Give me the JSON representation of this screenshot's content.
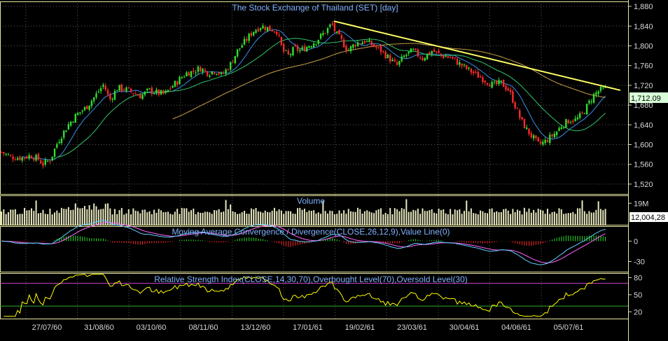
{
  "colors": {
    "background": "#000000",
    "grid": "#5a5a5a",
    "axis_text": "#d8d8d8",
    "title_text": "#7fb2ff",
    "frame": "#e6e6a0",
    "candle_up": "#2fe02f",
    "candle_down": "#ff2a2a",
    "ma_short": "#3a8fe8",
    "ma_medium": "#2ec46a",
    "ma_long": "#c9a04a",
    "trendline": "#ffff66",
    "volume_bar": "#e8e8c0",
    "macd_line": "#5fd0ff",
    "macd_signal": "#ff66ff",
    "rsi_line": "#ffff00",
    "overbought_line": "#cc44cc",
    "oversold_line": "#33aa33",
    "price_label_bg": "#d8ffd8",
    "volume_label_bg": "#ffffff"
  },
  "chart_data": [
    {
      "type": "candlestick",
      "title": "The Stock Exchange of Thailand (SET) [day]",
      "ylim": [
        1500,
        1890
      ],
      "yticks": [
        1520,
        1560,
        1600,
        1640,
        1680,
        1720,
        1760,
        1800,
        1840,
        1880
      ],
      "ytick_labels": [
        "1,520",
        "1,560",
        "1,600",
        "1,640",
        "1,680",
        "1,720",
        "1,760",
        "1,800",
        "1,840",
        "1,880"
      ],
      "last_price_label": "1,712.09",
      "last_price": 1712.09,
      "x_dates": [
        "27/07/60",
        "31/08/60",
        "03/10/60",
        "08/11/60",
        "13/12/60",
        "17/01/61",
        "19/02/61",
        "23/03/61",
        "30/04/61",
        "04/06/61",
        "05/07/61"
      ],
      "num_bars": 262,
      "close_anchors": [
        [
          0,
          1585
        ],
        [
          10,
          1575
        ],
        [
          20,
          1573
        ],
        [
          30,
          1578
        ],
        [
          38,
          1570
        ],
        [
          42,
          1560
        ],
        [
          50,
          1570
        ],
        [
          56,
          1600
        ],
        [
          60,
          1615
        ],
        [
          68,
          1640
        ],
        [
          76,
          1660
        ],
        [
          86,
          1675
        ],
        [
          96,
          1700
        ],
        [
          104,
          1722
        ],
        [
          110,
          1690
        ],
        [
          118,
          1715
        ],
        [
          126,
          1712
        ],
        [
          134,
          1705
        ],
        [
          142,
          1698
        ],
        [
          150,
          1710
        ],
        [
          158,
          1705
        ],
        [
          166,
          1702
        ],
        [
          172,
          1715
        ],
        [
          180,
          1730
        ],
        [
          188,
          1745
        ],
        [
          195,
          1748
        ],
        [
          202,
          1755
        ],
        [
          210,
          1745
        ],
        [
          218,
          1750
        ],
        [
          224,
          1740
        ],
        [
          232,
          1760
        ],
        [
          240,
          1790
        ],
        [
          248,
          1810
        ],
        [
          256,
          1830
        ],
        [
          264,
          1840
        ],
        [
          272,
          1835
        ],
        [
          280,
          1830
        ],
        [
          286,
          1790
        ],
        [
          292,
          1780
        ],
        [
          298,
          1795
        ],
        [
          304,
          1790
        ],
        [
          312,
          1800
        ],
        [
          320,
          1810
        ],
        [
          330,
          1830
        ],
        [
          336,
          1845
        ],
        [
          340,
          1825
        ],
        [
          346,
          1810
        ],
        [
          352,
          1790
        ],
        [
          360,
          1805
        ],
        [
          370,
          1810
        ],
        [
          378,
          1800
        ],
        [
          386,
          1790
        ],
        [
          394,
          1775
        ],
        [
          402,
          1760
        ],
        [
          410,
          1780
        ],
        [
          418,
          1790
        ],
        [
          428,
          1775
        ],
        [
          438,
          1790
        ],
        [
          448,
          1780
        ],
        [
          458,
          1775
        ],
        [
          468,
          1760
        ],
        [
          476,
          1750
        ],
        [
          484,
          1740
        ],
        [
          492,
          1730
        ],
        [
          500,
          1720
        ],
        [
          508,
          1725
        ],
        [
          516,
          1710
        ],
        [
          522,
          1680
        ],
        [
          528,
          1650
        ],
        [
          534,
          1630
        ],
        [
          540,
          1615
        ],
        [
          546,
          1600
        ],
        [
          552,
          1605
        ],
        [
          558,
          1615
        ],
        [
          564,
          1625
        ],
        [
          570,
          1640
        ],
        [
          578,
          1650
        ],
        [
          584,
          1650
        ],
        [
          590,
          1660
        ],
        [
          596,
          1680
        ],
        [
          602,
          1700
        ],
        [
          608,
          1710
        ],
        [
          614,
          1712
        ]
      ],
      "trendline": [
        [
          338,
          1850
        ],
        [
          615,
          1715
        ]
      ],
      "series": [
        {
          "name": "",
          "style": "ma_short"
        },
        {
          "name": "",
          "style": "ma_medium"
        },
        {
          "name": "",
          "style": "ma_long"
        }
      ]
    },
    {
      "type": "bar",
      "title": "Volume",
      "ylim": [
        0,
        26
      ],
      "yticks": [
        19
      ],
      "ytick_labels": [
        "19M"
      ],
      "last_value_label": "12,004,28",
      "last_value": 12.004
    },
    {
      "type": "line",
      "title": "Moving Average Convergence / Divergence(CLOSE,26,12,9),Value Line(0)",
      "ylim": [
        -45,
        22
      ],
      "yticks": [
        0,
        -30
      ],
      "ytick_labels": [
        "0",
        "-30"
      ],
      "series": [
        {
          "name": "",
          "style": "macd_line"
        },
        {
          "name": "",
          "style": "macd_signal"
        }
      ]
    },
    {
      "type": "line",
      "title": "Relative Strength Index(CLOSE,14,30,70),Overbought Level(70),Oversold Level(30)",
      "ylim": [
        8,
        88
      ],
      "yticks": [
        80,
        50,
        20
      ],
      "ytick_labels": [
        "80",
        "50",
        "20"
      ],
      "overbought": 70,
      "oversold": 30,
      "series": [
        {
          "name": "",
          "style": "rsi_line"
        }
      ]
    }
  ]
}
